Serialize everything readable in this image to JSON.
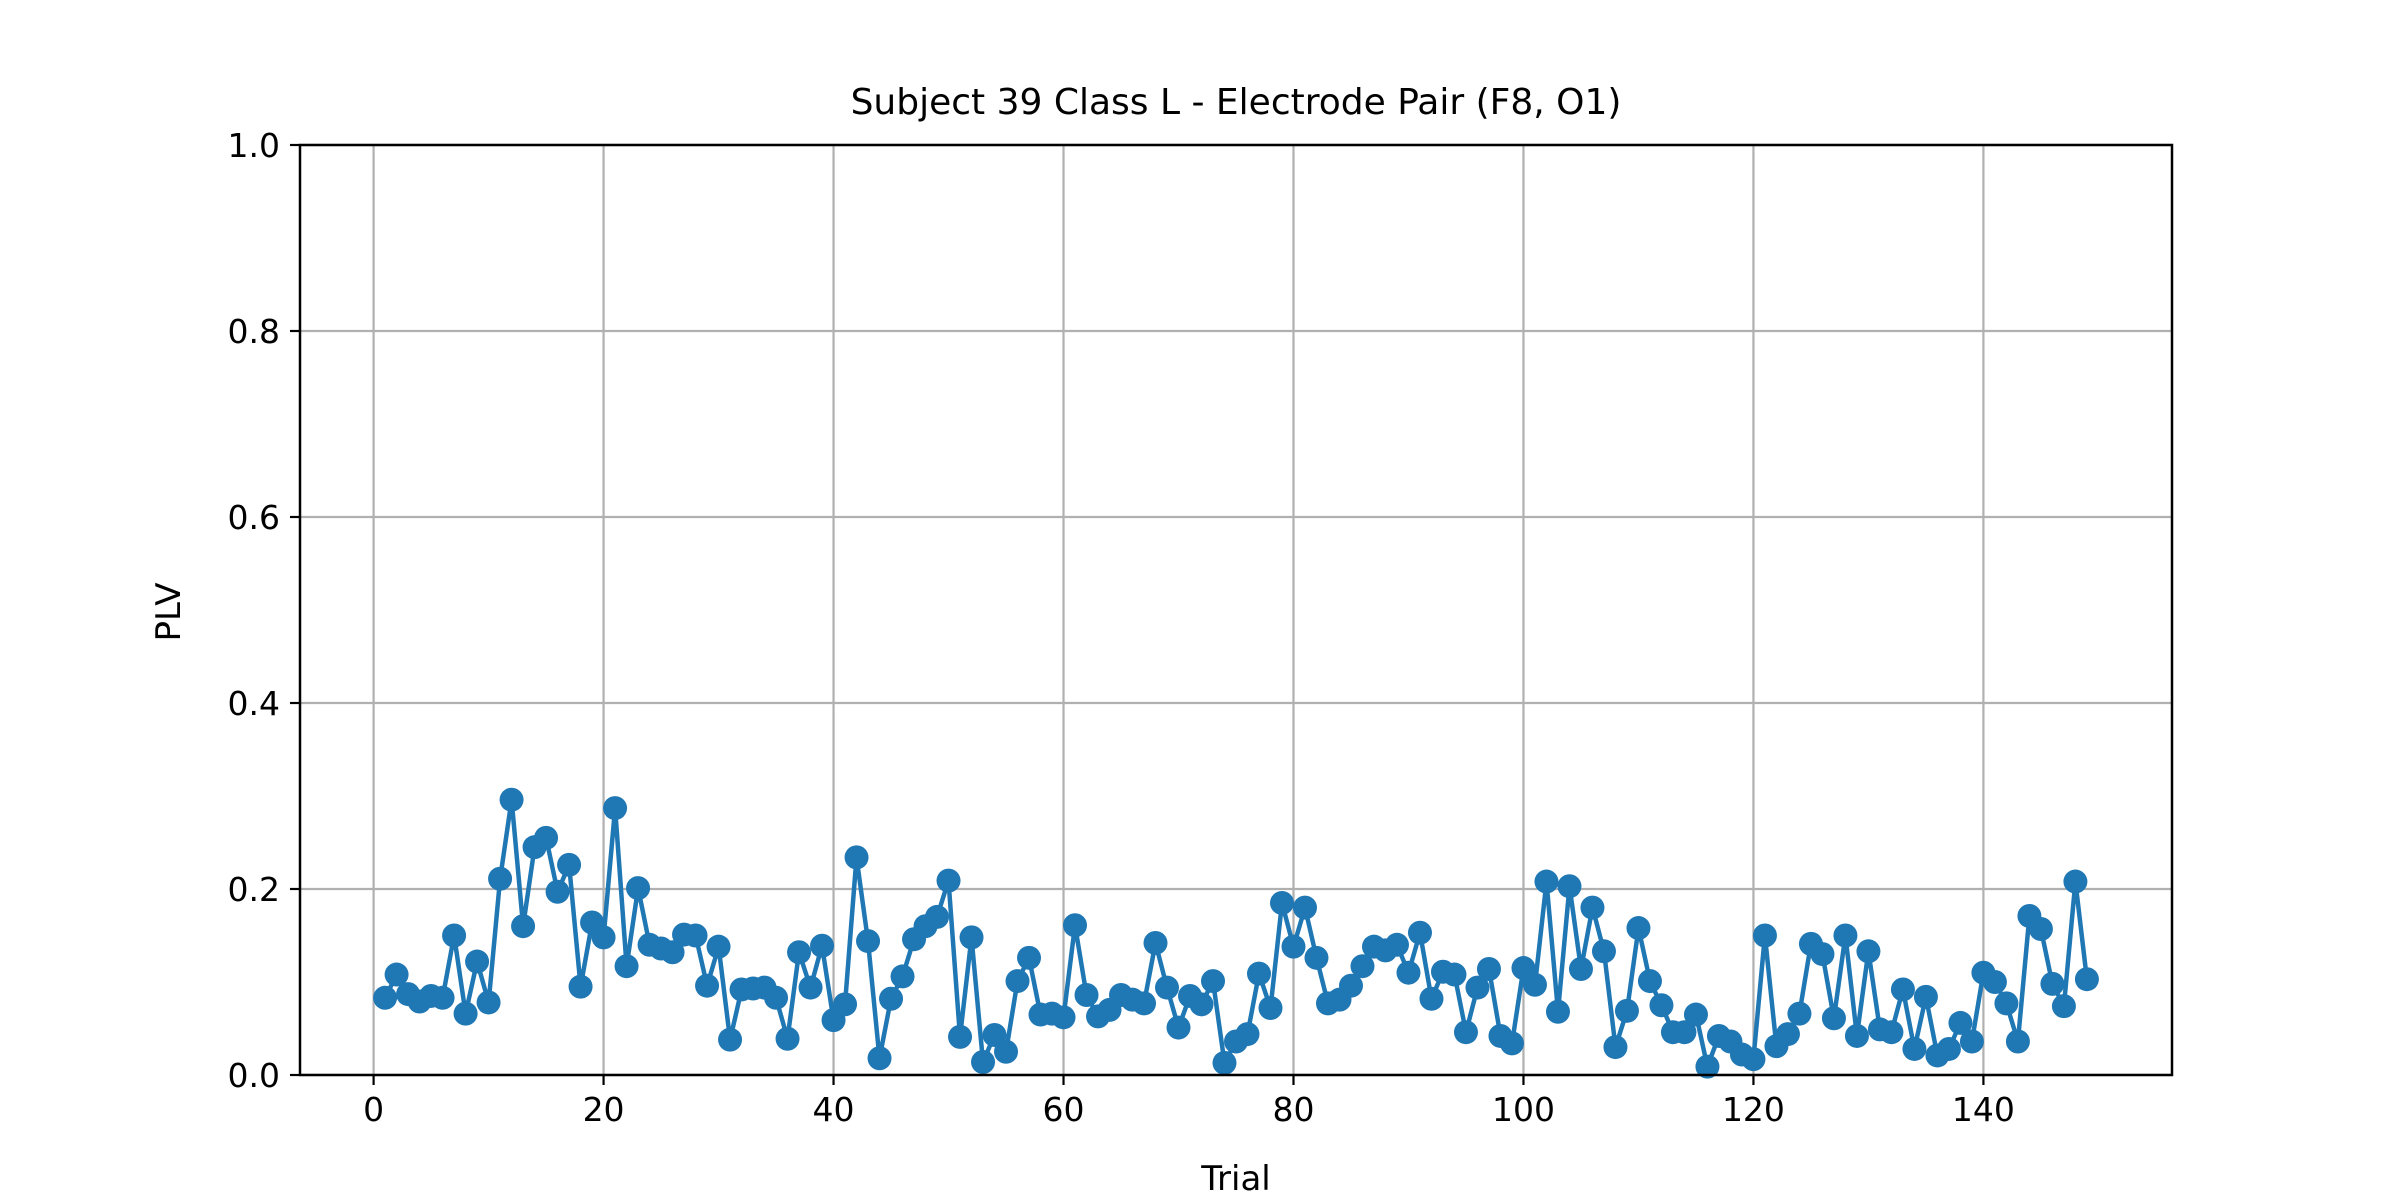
{
  "chart_data": {
    "type": "line",
    "title": "Subject 39 Class L - Electrode Pair (F8, O1)",
    "xlabel": "Trial",
    "ylabel": "PLV",
    "xlim": [
      -6.4,
      156.4
    ],
    "ylim": [
      0,
      1.0
    ],
    "xticks": [
      0,
      20,
      40,
      60,
      80,
      100,
      120,
      140
    ],
    "yticks": [
      0.0,
      0.2,
      0.4,
      0.6,
      0.8,
      1.0
    ],
    "xtick_labels": [
      "0",
      "20",
      "40",
      "60",
      "80",
      "100",
      "120",
      "140"
    ],
    "ytick_labels": [
      "0.0",
      "0.2",
      "0.4",
      "0.6",
      "0.8",
      "1.0"
    ],
    "grid": true,
    "marker": "circle",
    "color": "#1f77b4",
    "series": [
      {
        "x": [
          1,
          2,
          3,
          4,
          5,
          6,
          7,
          8,
          9,
          10,
          11,
          12,
          13,
          14,
          15,
          16,
          17,
          18,
          19,
          20,
          21,
          22,
          23,
          24,
          25,
          26,
          27,
          28,
          29,
          30,
          31,
          32,
          33,
          34,
          35,
          36,
          37,
          38,
          39,
          40,
          41,
          42,
          43,
          44,
          45,
          46,
          47,
          48,
          49,
          50,
          51,
          52,
          53,
          54,
          55,
          56,
          57,
          58,
          59,
          60,
          61,
          62,
          63,
          64,
          65,
          66,
          67,
          68,
          69,
          70,
          71,
          72,
          73,
          74,
          75,
          76,
          77,
          78,
          79,
          80,
          81,
          82,
          83,
          84,
          85,
          86,
          87,
          88,
          89,
          90,
          91,
          92,
          93,
          94,
          95,
          96,
          97,
          98,
          99,
          100,
          101,
          102,
          103,
          104,
          105,
          106,
          107,
          108,
          109,
          110,
          111,
          112,
          113,
          114,
          115,
          116,
          117,
          118,
          119,
          120,
          121,
          122,
          123,
          124,
          125,
          126,
          127,
          128,
          129,
          130,
          131,
          132,
          133,
          134,
          135,
          136,
          137,
          138,
          139,
          140,
          141,
          142,
          143,
          144,
          145,
          146,
          147,
          148,
          149
        ],
        "y": [
          0.083,
          0.108,
          0.087,
          0.079,
          0.085,
          0.083,
          0.15,
          0.066,
          0.122,
          0.078,
          0.211,
          0.296,
          0.16,
          0.245,
          0.255,
          0.197,
          0.226,
          0.095,
          0.164,
          0.148,
          0.287,
          0.117,
          0.201,
          0.14,
          0.136,
          0.132,
          0.151,
          0.15,
          0.096,
          0.138,
          0.038,
          0.092,
          0.093,
          0.094,
          0.083,
          0.039,
          0.132,
          0.094,
          0.139,
          0.059,
          0.076,
          0.234,
          0.144,
          0.018,
          0.082,
          0.106,
          0.146,
          0.16,
          0.17,
          0.209,
          0.041,
          0.148,
          0.014,
          0.043,
          0.025,
          0.101,
          0.126,
          0.065,
          0.066,
          0.062,
          0.161,
          0.086,
          0.063,
          0.07,
          0.086,
          0.081,
          0.077,
          0.142,
          0.094,
          0.051,
          0.085,
          0.076,
          0.101,
          0.013,
          0.036,
          0.044,
          0.109,
          0.072,
          0.185,
          0.138,
          0.18,
          0.126,
          0.077,
          0.081,
          0.096,
          0.117,
          0.138,
          0.134,
          0.14,
          0.11,
          0.153,
          0.082,
          0.111,
          0.108,
          0.046,
          0.094,
          0.114,
          0.042,
          0.034,
          0.115,
          0.097,
          0.208,
          0.068,
          0.203,
          0.114,
          0.18,
          0.133,
          0.03,
          0.069,
          0.158,
          0.101,
          0.075,
          0.046,
          0.046,
          0.065,
          0.009,
          0.042,
          0.036,
          0.022,
          0.017,
          0.15,
          0.031,
          0.044,
          0.066,
          0.141,
          0.13,
          0.061,
          0.15,
          0.042,
          0.133,
          0.049,
          0.046,
          0.092,
          0.028,
          0.084,
          0.021,
          0.028,
          0.056,
          0.036,
          0.11,
          0.1,
          0.077,
          0.036,
          0.171,
          0.157,
          0.098,
          0.074,
          0.208,
          0.103
        ]
      }
    ]
  }
}
